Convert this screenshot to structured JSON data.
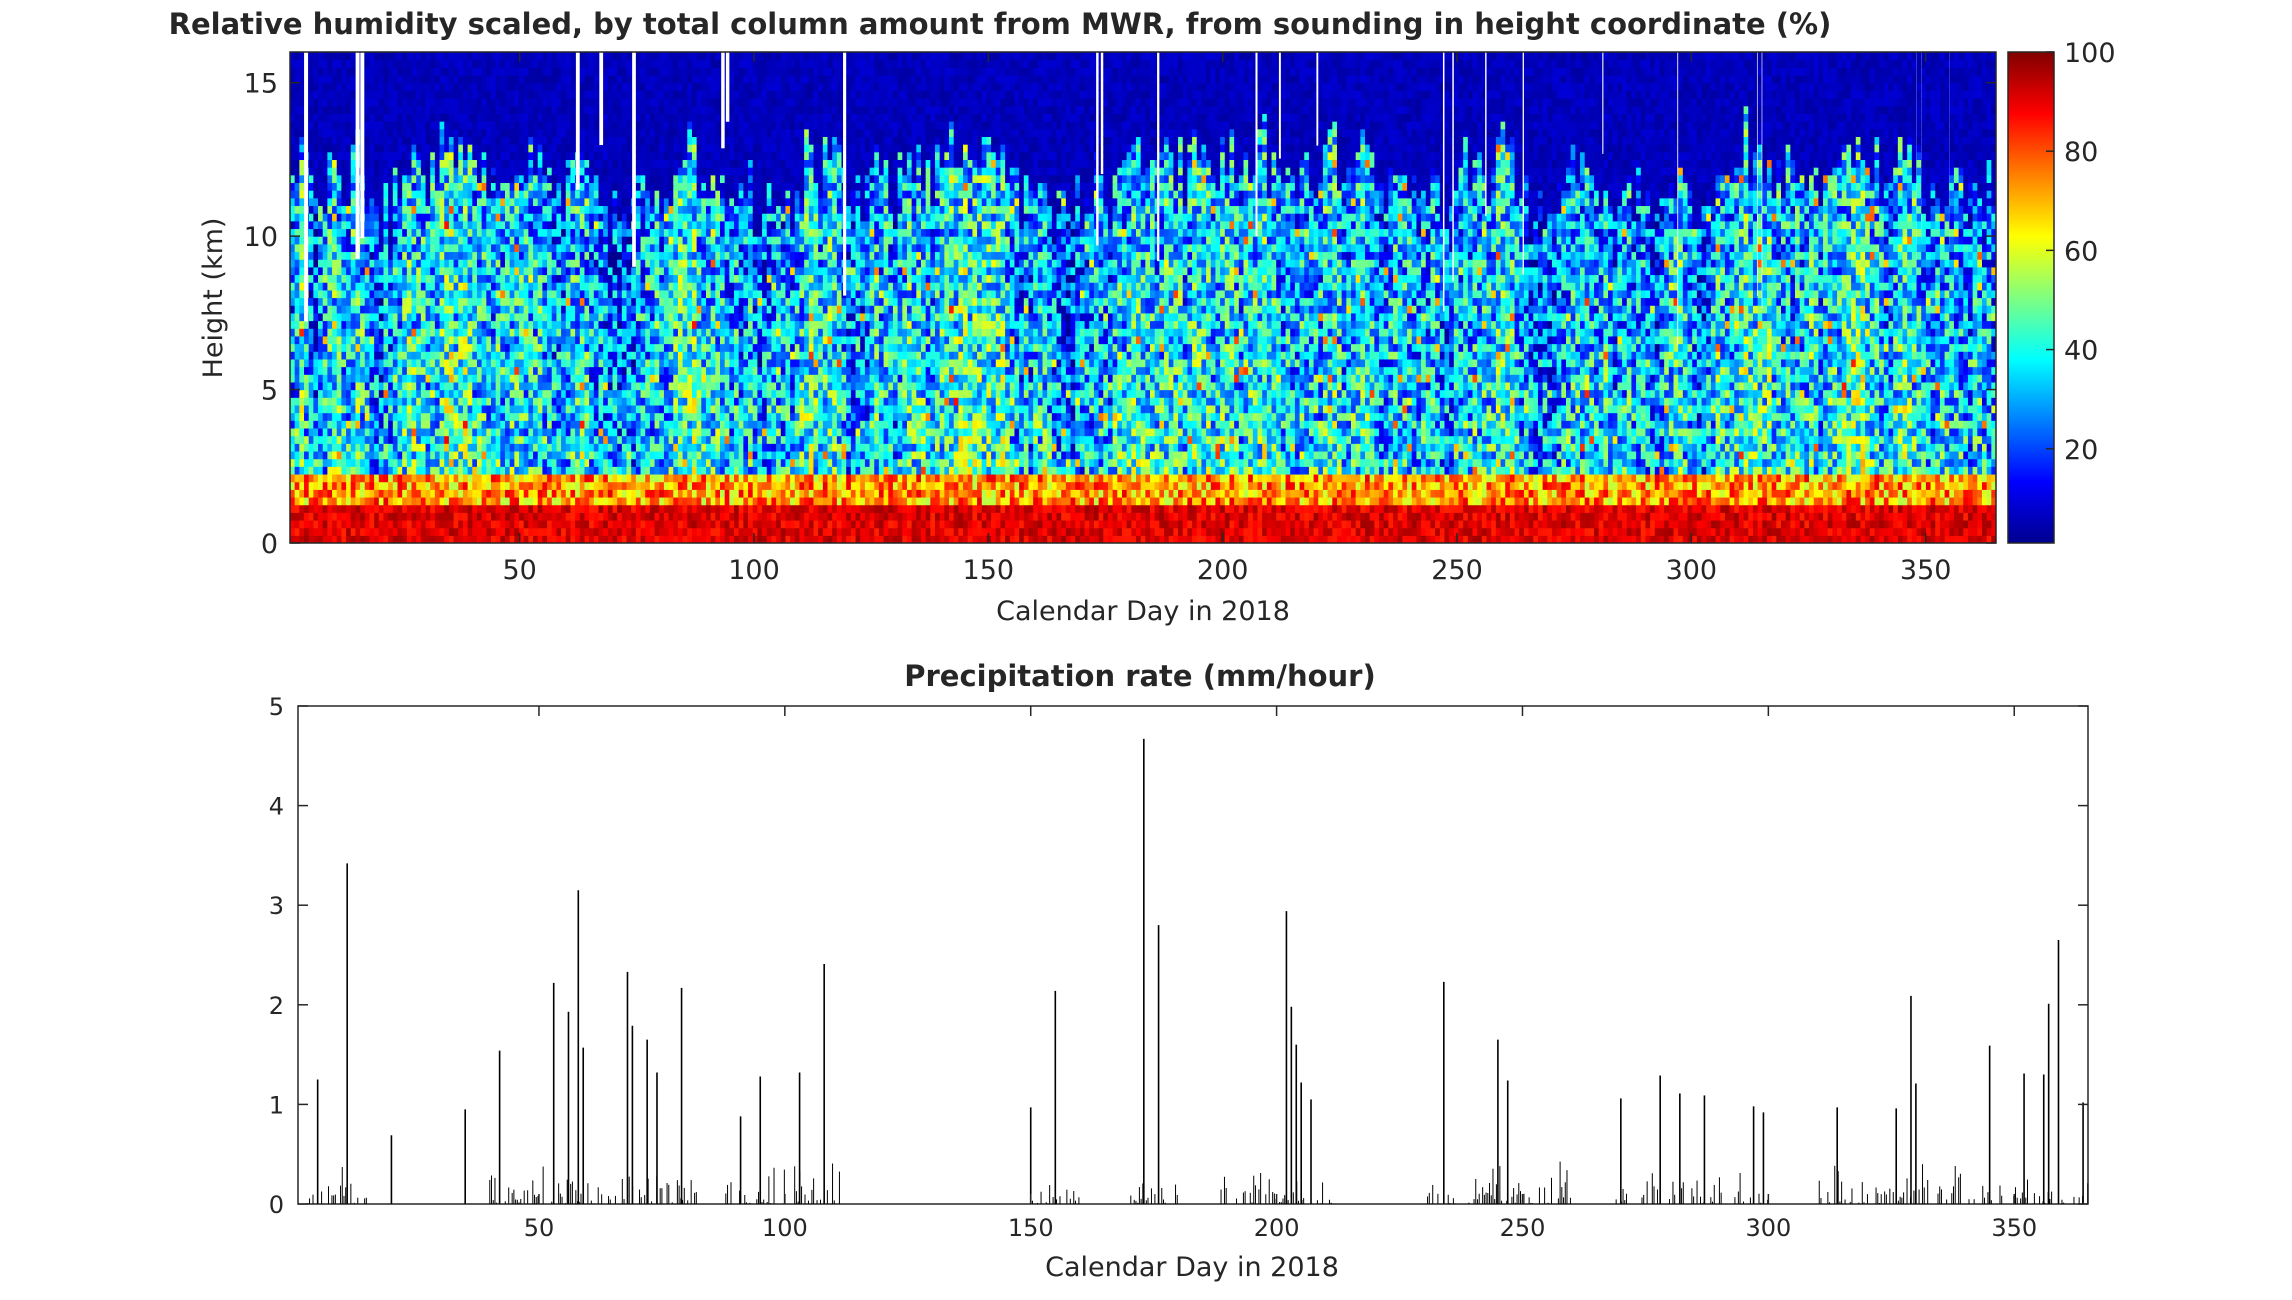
{
  "charts": [
    {
      "type": "heatmap",
      "title": "Relative humidity scaled, by total column amount from MWR, from sounding in height coordinate  (%)",
      "xlabel": "Calendar Day in 2018",
      "ylabel": "Height (km)",
      "xlim": [
        1,
        365
      ],
      "ylim": [
        0,
        16
      ],
      "xticks": [
        50,
        100,
        150,
        200,
        250,
        300,
        350
      ],
      "yticks": [
        0,
        5,
        10,
        15
      ],
      "colorbar": {
        "label": "",
        "range": [
          1,
          100
        ],
        "ticks": [
          20,
          40,
          60,
          80,
          100
        ],
        "colormap": "jet"
      },
      "missing_data_days": [
        4,
        15,
        16,
        62,
        67,
        74,
        93,
        94,
        119,
        173,
        174,
        186,
        207,
        212,
        220,
        247,
        249,
        256,
        264,
        281,
        297,
        314,
        315,
        348,
        349,
        355
      ],
      "surface_layer_humidity_percent": "80-100 (0-2 km)",
      "upper_layer_humidity_percent": "below 20 (above ~13 km)"
    },
    {
      "type": "bar",
      "title": "Precipitation rate  (mm/hour)",
      "xlabel": "Calendar Day in 2018",
      "ylabel": "",
      "xlim": [
        1,
        365
      ],
      "ylim": [
        0,
        5
      ],
      "xticks": [
        50,
        100,
        150,
        200,
        250,
        300,
        350
      ],
      "yticks": [
        0,
        1,
        2,
        3,
        4,
        5
      ],
      "spikes": [
        [
          5,
          1.25
        ],
        [
          11,
          3.42
        ],
        [
          20,
          0.69
        ],
        [
          35,
          0.95
        ],
        [
          42,
          1.54
        ],
        [
          53,
          2.22
        ],
        [
          56,
          1.93
        ],
        [
          58,
          3.15
        ],
        [
          59,
          1.57
        ],
        [
          68,
          2.33
        ],
        [
          69,
          1.79
        ],
        [
          72,
          1.65
        ],
        [
          74,
          1.32
        ],
        [
          79,
          2.17
        ],
        [
          91,
          0.88
        ],
        [
          95,
          1.28
        ],
        [
          103,
          1.32
        ],
        [
          108,
          2.41
        ],
        [
          150,
          0.97
        ],
        [
          155,
          2.14
        ],
        [
          173,
          4.67
        ],
        [
          176,
          2.8
        ],
        [
          202,
          2.94
        ],
        [
          203,
          1.98
        ],
        [
          204,
          1.6
        ],
        [
          205,
          1.22
        ],
        [
          207,
          1.05
        ],
        [
          234,
          2.23
        ],
        [
          245,
          1.65
        ],
        [
          247,
          1.24
        ],
        [
          270,
          1.06
        ],
        [
          278,
          1.29
        ],
        [
          282,
          1.11
        ],
        [
          287,
          1.09
        ],
        [
          297,
          0.98
        ],
        [
          299,
          0.92
        ],
        [
          314,
          0.97
        ],
        [
          326,
          0.96
        ],
        [
          329,
          2.09
        ],
        [
          330,
          1.21
        ],
        [
          345,
          1.59
        ],
        [
          352,
          1.31
        ],
        [
          356,
          1.3
        ],
        [
          357,
          2.01
        ],
        [
          359,
          2.65
        ],
        [
          364,
          1.02
        ]
      ]
    }
  ]
}
